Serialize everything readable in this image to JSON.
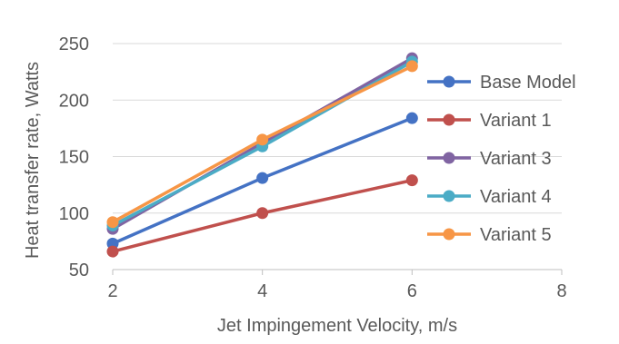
{
  "chart_data": {
    "type": "line",
    "title": "",
    "xlabel": "Jet Impingement Velocity, m/s",
    "ylabel": "Heat transfer rate, Watts",
    "xlim": [
      2,
      8
    ],
    "ylim": [
      50,
      250
    ],
    "xticks": [
      "2",
      "4",
      "6",
      "8"
    ],
    "yticks": [
      "50",
      "100",
      "150",
      "200",
      "250"
    ],
    "grid": "horizontal",
    "legend_position": "right",
    "x": [
      2,
      4,
      6
    ],
    "series": [
      {
        "name": "Base Model",
        "color": "#4472C4",
        "values": [
          73,
          131,
          184
        ]
      },
      {
        "name": "Variant 1",
        "color": "#C0504D",
        "values": [
          66,
          100,
          129
        ]
      },
      {
        "name": "Variant 3",
        "color": "#8064A2",
        "values": [
          86,
          162,
          237
        ]
      },
      {
        "name": "Variant 4",
        "color": "#4BACC6",
        "values": [
          89,
          159,
          234
        ]
      },
      {
        "name": "Variant 5",
        "color": "#F79646",
        "values": [
          92,
          165,
          230
        ]
      }
    ]
  }
}
